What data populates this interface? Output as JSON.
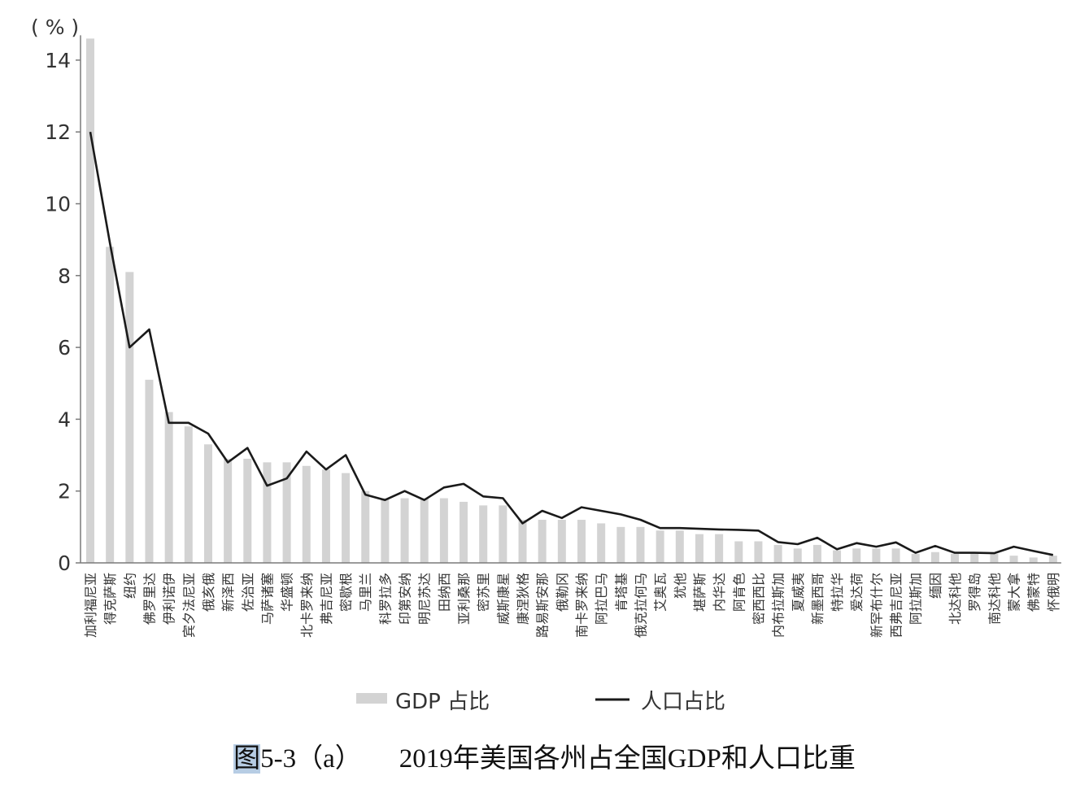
{
  "caption": {
    "figure_label": "图",
    "figure_number": "5-3（a）",
    "title": "2019年美国各州占全国GDP和人口比重"
  },
  "chart_data": {
    "type": "bar",
    "unit_label": "( % )",
    "ylim": [
      0,
      14.6
    ],
    "yticks": [
      0,
      2,
      4,
      6,
      8,
      10,
      12,
      14
    ],
    "grid": false,
    "legend_position": "bottom-center",
    "colors": {
      "bar": "#d3d3d3",
      "line": "#1a1a1a",
      "axis": "#7a7a7a",
      "text": "#333333"
    },
    "categories": [
      "加利福尼亚",
      "得克萨斯",
      "纽约",
      "佛罗里达",
      "伊利诺伊",
      "宾夕法尼亚",
      "俄亥俄",
      "新泽西",
      "佐治亚",
      "马萨诸塞",
      "华盛顿",
      "北卡罗来纳",
      "弗吉尼亚",
      "密歇根",
      "马里兰",
      "科罗拉多",
      "印第安纳",
      "明尼苏达",
      "田纳西",
      "亚利桑那",
      "密苏里",
      "威斯康星",
      "康涅狄格",
      "路易斯安那",
      "俄勒冈",
      "南卡罗来纳",
      "阿拉巴马",
      "肯塔基",
      "俄克拉何马",
      "艾奥瓦",
      "犹他",
      "堪萨斯",
      "内华达",
      "阿肯色",
      "密西西比",
      "内布拉斯加",
      "夏威夷",
      "新墨西哥",
      "特拉华",
      "爱达荷",
      "新罕布什尔",
      "西弗吉尼亚",
      "阿拉斯加",
      "缅因",
      "北达科他",
      "罗得岛",
      "南达科他",
      "蒙大拿",
      "佛蒙特",
      "怀俄明"
    ],
    "series": [
      {
        "name": "GDP 占比",
        "type": "bar",
        "values": [
          14.6,
          8.8,
          8.1,
          5.1,
          4.2,
          3.8,
          3.3,
          2.9,
          2.9,
          2.8,
          2.8,
          2.7,
          2.6,
          2.5,
          2.0,
          1.8,
          1.8,
          1.8,
          1.8,
          1.7,
          1.6,
          1.6,
          1.2,
          1.2,
          1.2,
          1.2,
          1.1,
          1.0,
          1.0,
          0.9,
          0.9,
          0.8,
          0.8,
          0.6,
          0.6,
          0.5,
          0.4,
          0.5,
          0.35,
          0.4,
          0.4,
          0.4,
          0.25,
          0.3,
          0.25,
          0.3,
          0.25,
          0.2,
          0.15,
          0.2
        ]
      },
      {
        "name": "人口占比",
        "type": "line",
        "values": [
          12.0,
          8.9,
          6.0,
          6.5,
          3.9,
          3.9,
          3.6,
          2.8,
          3.2,
          2.15,
          2.35,
          3.1,
          2.6,
          3.0,
          1.9,
          1.75,
          2.0,
          1.75,
          2.1,
          2.2,
          1.85,
          1.8,
          1.1,
          1.45,
          1.25,
          1.55,
          1.45,
          1.35,
          1.2,
          0.97,
          0.97,
          0.95,
          0.93,
          0.92,
          0.9,
          0.58,
          0.52,
          0.7,
          0.38,
          0.55,
          0.45,
          0.57,
          0.28,
          0.47,
          0.28,
          0.28,
          0.27,
          0.45,
          0.33,
          0.22
        ]
      }
    ]
  }
}
